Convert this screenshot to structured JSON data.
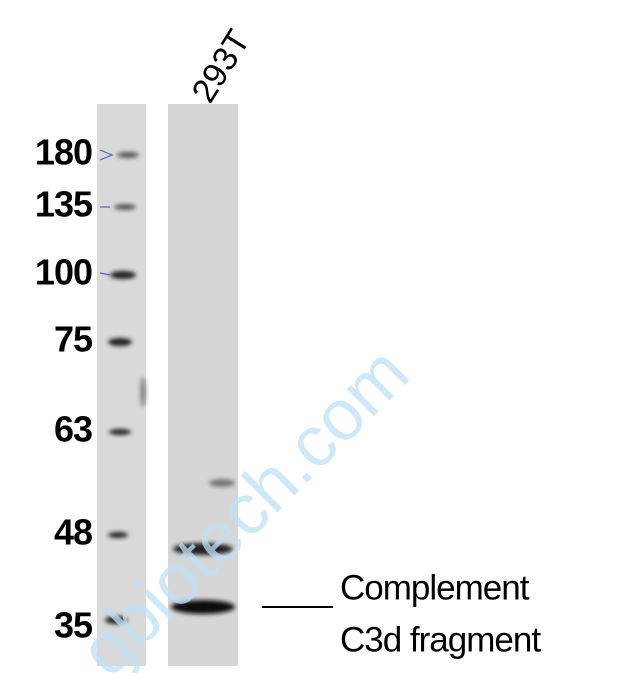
{
  "lane_label": "293T",
  "markers": [
    "180",
    "135",
    "100",
    "75",
    "63",
    "48",
    "35"
  ],
  "annotation": {
    "line1": "Complement",
    "line2": "C3d fragment"
  },
  "watermark": "gbiotech.com"
}
